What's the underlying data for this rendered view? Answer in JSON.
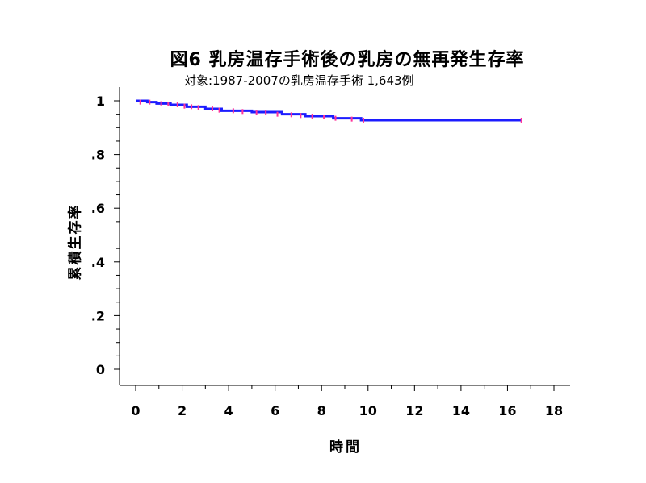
{
  "chart_data": {
    "type": "line",
    "title": "図6  乳房温存手術後の乳房の無再発生存率",
    "subtitle": "対象:1987-2007の乳房温存手術 1,643例",
    "xlabel": "時間",
    "ylabel": "累積生存率",
    "xlim": [
      0,
      18
    ],
    "ylim": [
      0,
      1
    ],
    "x_ticks": [
      0,
      2,
      4,
      6,
      8,
      10,
      12,
      14,
      16,
      18
    ],
    "x_tick_labels": [
      "0",
      "2",
      "4",
      "6",
      "8",
      "10",
      "12",
      "14",
      "16",
      "18"
    ],
    "y_ticks": [
      0,
      0.2,
      0.4,
      0.6,
      0.8,
      1
    ],
    "y_tick_labels": [
      "0",
      ".2",
      ".4",
      ".6",
      ".8",
      "1"
    ],
    "grid": false,
    "series": [
      {
        "color": "#1c1cff",
        "step": true,
        "x": [
          0,
          0.5,
          0.9,
          1.5,
          2.2,
          3.0,
          3.7,
          5.0,
          6.3,
          7.3,
          8.5,
          9.7,
          16.6
        ],
        "y": [
          1.0,
          0.995,
          0.99,
          0.985,
          0.978,
          0.97,
          0.963,
          0.958,
          0.95,
          0.943,
          0.935,
          0.928,
          0.928
        ]
      }
    ],
    "censor_marks": {
      "color": "#ff3399",
      "x": [
        0.2,
        0.6,
        1.1,
        1.4,
        1.8,
        2.1,
        2.4,
        2.7,
        3.3,
        3.6,
        4.2,
        4.6,
        5.2,
        5.6,
        6.1,
        6.7,
        7.1,
        7.6,
        8.1,
        8.6,
        9.3,
        9.8,
        16.6
      ],
      "y": [
        0.995,
        0.995,
        0.99,
        0.988,
        0.985,
        0.98,
        0.978,
        0.975,
        0.97,
        0.965,
        0.963,
        0.96,
        0.958,
        0.955,
        0.95,
        0.948,
        0.945,
        0.943,
        0.94,
        0.935,
        0.932,
        0.928,
        0.928
      ]
    }
  }
}
